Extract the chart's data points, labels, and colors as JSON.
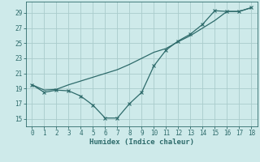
{
  "xlabel": "Humidex (Indice chaleur)",
  "ylabel": "",
  "background_color": "#ceeaea",
  "grid_color": "#aacccc",
  "line_color": "#2e6b6b",
  "xlim": [
    -0.5,
    18.5
  ],
  "ylim": [
    14.0,
    30.5
  ],
  "xticks": [
    0,
    1,
    2,
    3,
    4,
    5,
    6,
    7,
    8,
    9,
    10,
    11,
    12,
    13,
    14,
    15,
    16,
    17,
    18
  ],
  "yticks": [
    15,
    17,
    19,
    21,
    23,
    25,
    27,
    29
  ],
  "line1_x": [
    0,
    1,
    2,
    3,
    4,
    5,
    6,
    7,
    8,
    9,
    10,
    11,
    12,
    13,
    14,
    15,
    16,
    17,
    18
  ],
  "line1_y": [
    19.5,
    18.8,
    18.9,
    19.5,
    20.0,
    20.5,
    21.0,
    21.5,
    22.2,
    23.0,
    23.8,
    24.3,
    25.2,
    26.0,
    27.0,
    28.0,
    29.2,
    29.2,
    29.7
  ],
  "line2_x": [
    0,
    1,
    2,
    3,
    4,
    5,
    6,
    7,
    8,
    9,
    10,
    11,
    12,
    13,
    14,
    15,
    16,
    17,
    18
  ],
  "line2_y": [
    19.5,
    18.5,
    18.8,
    18.7,
    18.0,
    16.8,
    15.1,
    15.1,
    17.0,
    18.5,
    22.0,
    24.1,
    25.3,
    26.2,
    27.5,
    29.3,
    29.2,
    29.2,
    29.7
  ]
}
